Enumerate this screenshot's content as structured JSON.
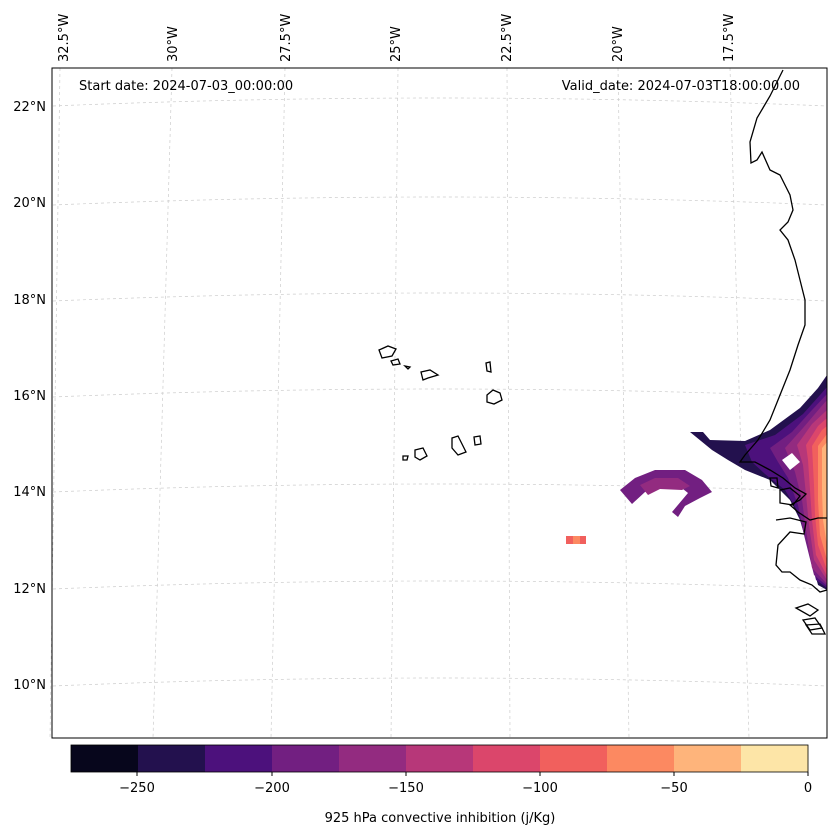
{
  "map": {
    "start_date": "Start date: 2024-07-03_00:00:00",
    "valid_date": "Valid_date: 2024-07-03T18:00:00.00",
    "lon_labels": [
      "32.5°W",
      "30°W",
      "27.5°W",
      "25°W",
      "22.5°W",
      "20°W",
      "17.5°W"
    ],
    "lat_labels": [
      "22°N",
      "20°N",
      "18°N",
      "16°N",
      "14°N",
      "12°N",
      "10°N"
    ],
    "region": "Cabo Verde and West African coast"
  },
  "colorbar": {
    "label": "925 hPa convective inhibition (j/Kg)",
    "tick_labels": [
      "−250",
      "−200",
      "−150",
      "−100",
      "−50",
      "0"
    ],
    "levels": [
      -275,
      -250,
      -225,
      -200,
      -175,
      -150,
      -125,
      -100,
      -75,
      -50,
      -25,
      0
    ],
    "colors": [
      "#07061c",
      "#23114e",
      "#4c117c",
      "#721f81",
      "#932b80",
      "#b73779",
      "#db466b",
      "#f1605d",
      "#fc8961",
      "#feb47b",
      "#fde5a7"
    ]
  }
}
